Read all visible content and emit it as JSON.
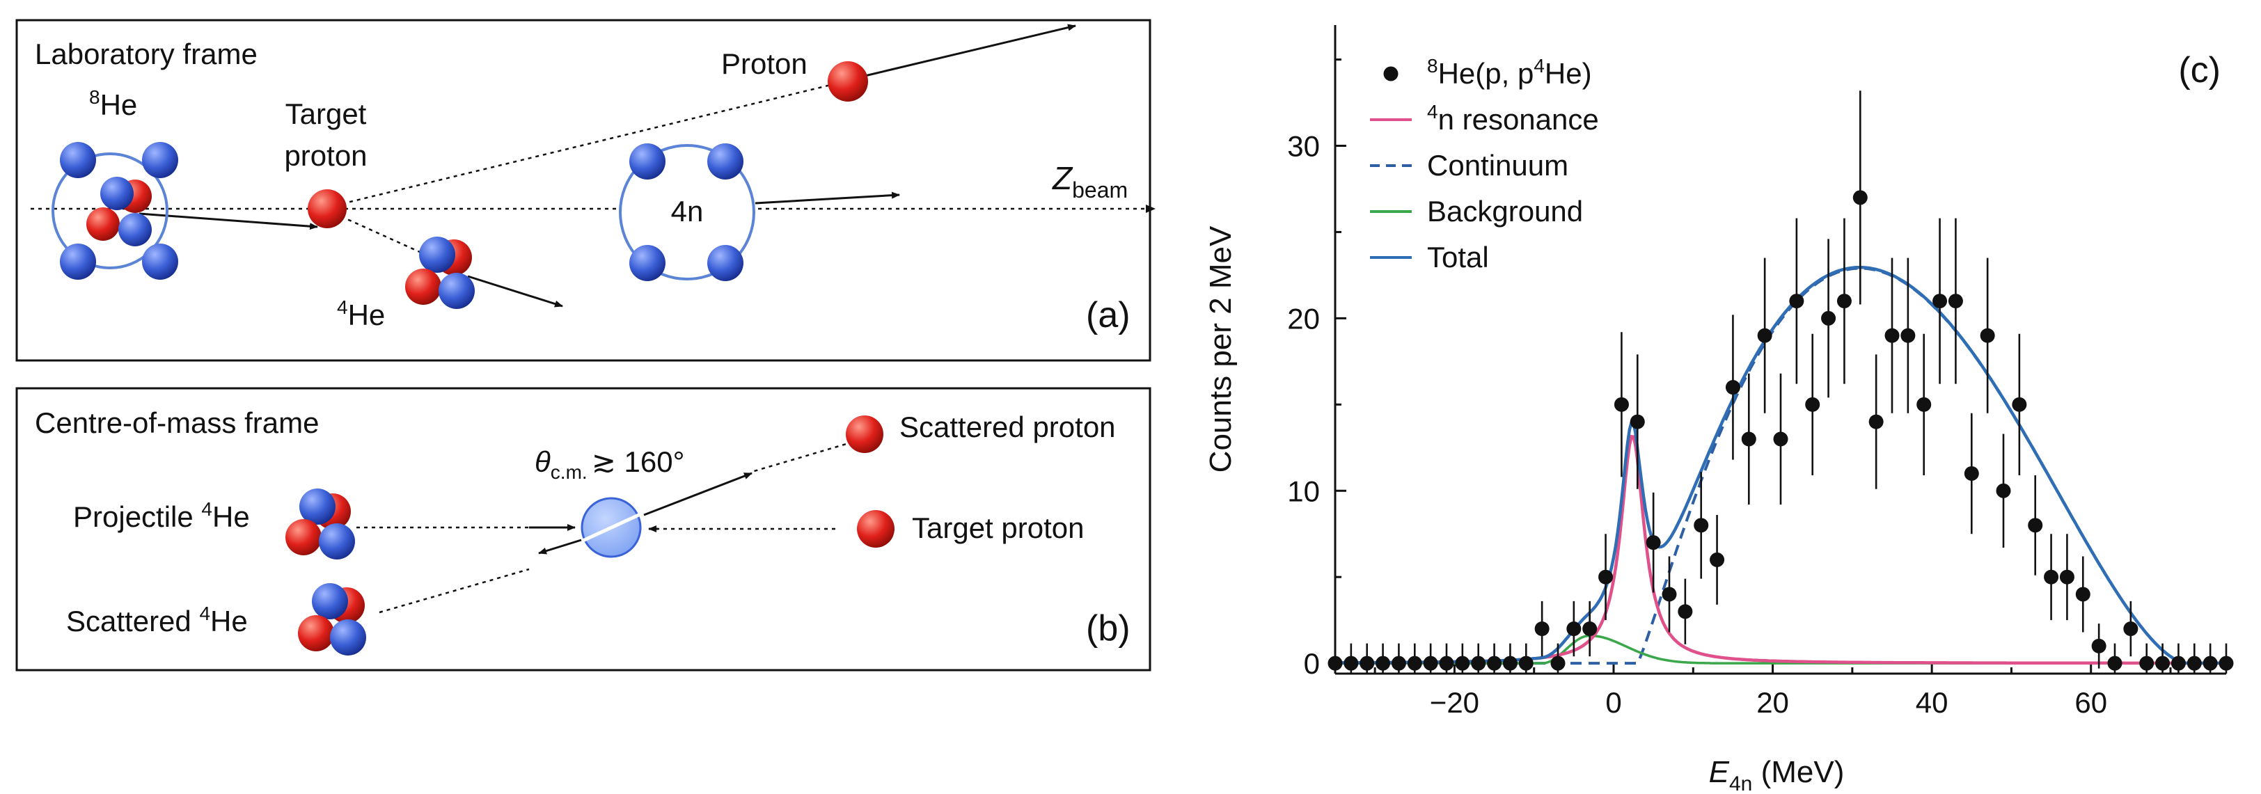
{
  "panel_a": {
    "title": "Laboratory frame",
    "label": "(a)",
    "he8": {
      "pre": "8",
      "main": "He"
    },
    "target": {
      "line1": "Target",
      "line2": "proton"
    },
    "proton": "Proton",
    "he4": {
      "pre": "4",
      "main": "He"
    },
    "tetraneutron": "4n",
    "zbeam": {
      "main": "Z",
      "sub": "beam"
    }
  },
  "panel_b": {
    "title": "Centre-of-mass frame",
    "label": "(b)",
    "projectile": {
      "main": "Projectile ",
      "sup": "4",
      "end": "He"
    },
    "scattered_he": {
      "main": "Scattered ",
      "sup": "4",
      "end": "He"
    },
    "scattered_proton": "Scattered proton",
    "target_proton": "Target proton",
    "theta": {
      "main": "θ",
      "sub": "c.m.",
      "rest": "≳ 160°"
    }
  },
  "colors": {
    "data": "#111111",
    "resonance": "#e0508a",
    "continuum": "#2e5fa3",
    "background": "#3aa84a",
    "total": "#2f6db5",
    "nucleon_blue": "#3a63d9",
    "nucleon_red": "#e0201a"
  },
  "chart_data": {
    "type": "scatter",
    "panel_label": "(c)",
    "xlabel": {
      "main": "E",
      "sub": "4n",
      "rest": " (MeV)"
    },
    "ylabel": "Counts per 2 MeV",
    "xlim": [
      -35,
      77
    ],
    "ylim": [
      -0.6,
      37
    ],
    "xticks": [
      -20,
      0,
      20,
      40,
      60
    ],
    "yticks": [
      0,
      10,
      20,
      30
    ],
    "legend_position": "top-left",
    "legend": [
      {
        "key": "data",
        "pre": "8",
        "main": "He(p, p",
        "sup": "4",
        "end": "He)"
      },
      {
        "key": "resonance",
        "pre": "4",
        "main": "n resonance"
      },
      {
        "key": "continuum",
        "main": "Continuum"
      },
      {
        "key": "background",
        "main": "Background"
      },
      {
        "key": "total",
        "main": "Total"
      }
    ],
    "points": {
      "x": [
        -35,
        -33,
        -31,
        -29,
        -27,
        -25,
        -23,
        -21,
        -19,
        -17,
        -15,
        -13,
        -11,
        -9,
        -7,
        -5,
        -3,
        -1,
        1,
        3,
        5,
        7,
        9,
        11,
        13,
        15,
        17,
        19,
        21,
        23,
        25,
        27,
        29,
        31,
        33,
        35,
        37,
        39,
        41,
        43,
        45,
        47,
        49,
        51,
        53,
        55,
        57,
        59,
        61,
        63,
        65,
        67,
        69,
        71,
        73,
        75,
        77
      ],
      "y": [
        0,
        0,
        0,
        0,
        0,
        0,
        0,
        0,
        0,
        0,
        0,
        0,
        0,
        2,
        0,
        2,
        2,
        5,
        15,
        14,
        7,
        4,
        3,
        8,
        6,
        16,
        13,
        19,
        13,
        21,
        15,
        20,
        21,
        27,
        14,
        19,
        19,
        15,
        21,
        21,
        11,
        19,
        10,
        15,
        8,
        5,
        5,
        4,
        1,
        0,
        2,
        0,
        0,
        0,
        0,
        0,
        0
      ],
      "err": [
        1.15,
        1.15,
        1.15,
        1.15,
        1.15,
        1.15,
        1.15,
        1.15,
        1.15,
        1.15,
        1.15,
        1.15,
        1.15,
        1.6,
        1.15,
        1.6,
        1.6,
        2.5,
        4.2,
        3.9,
        2.9,
        2.2,
        1.9,
        3.1,
        2.6,
        4.2,
        3.8,
        4.5,
        3.8,
        4.8,
        4.1,
        4.6,
        4.8,
        6.2,
        3.9,
        4.5,
        4.5,
        4.1,
        4.8,
        4.8,
        3.5,
        4.5,
        3.3,
        4.1,
        2.9,
        2.5,
        2.5,
        2.2,
        1.3,
        1.15,
        1.6,
        1.15,
        1.15,
        1.15,
        1.15,
        1.15,
        1.15
      ]
    },
    "resonance_fit": {
      "peak_x": 2.37,
      "peak_y": 13.2,
      "gamma": 3.6
    },
    "continuum_fit": {
      "onset_x": 3.0,
      "peak_x": 31.0,
      "peak_y": 22.9,
      "upper_x": 72.0
    },
    "background_fit": {
      "peak_x": -3.0,
      "peak_y": 1.6
    },
    "zero_line_y": 0
  }
}
